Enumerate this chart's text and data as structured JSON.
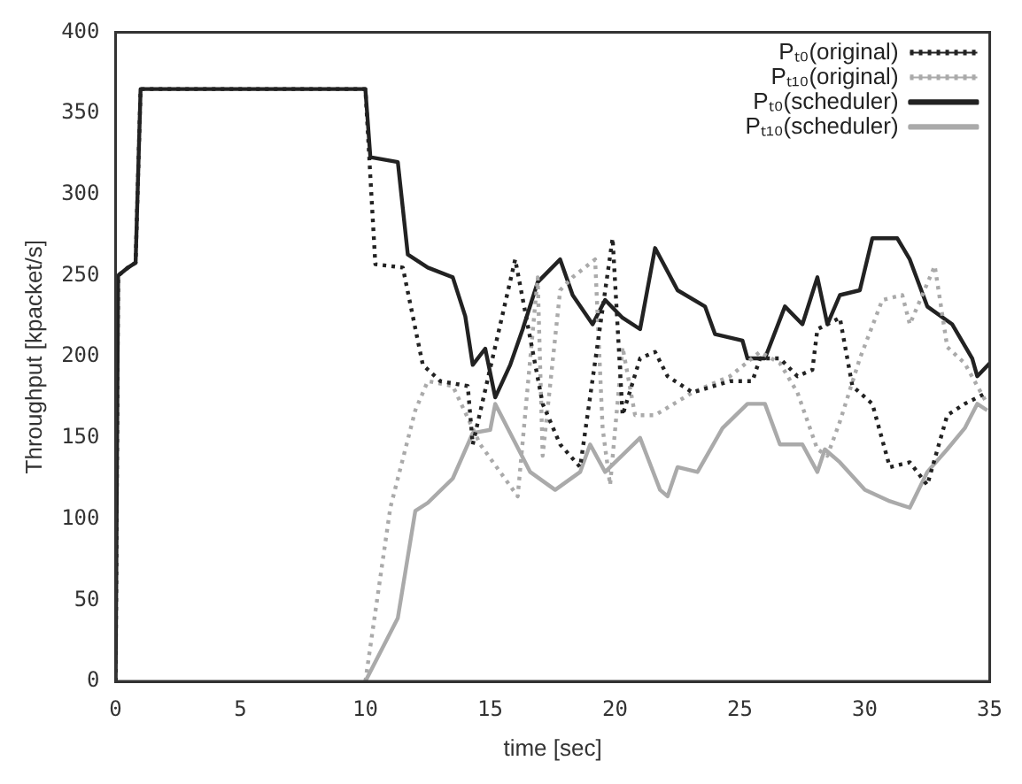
{
  "chart_data": {
    "type": "line",
    "xlabel": "time [sec]",
    "ylabel": "Throughput [kpacket/s]",
    "xlim": [
      0,
      35
    ],
    "ylim": [
      0,
      400
    ],
    "xticks": [
      0,
      5,
      10,
      15,
      20,
      25,
      30,
      35
    ],
    "yticks": [
      0,
      50,
      100,
      150,
      200,
      250,
      300,
      350,
      400
    ],
    "grid": false,
    "legend": "top right",
    "marker": "none",
    "series": [
      {
        "name": "Pₜ₀(original)",
        "color": "#222222",
        "line_style": "dotted",
        "x": [
          0,
          0.1,
          0.5,
          0.8,
          1,
          10,
          10.4,
          11.5,
          12.3,
          13,
          14.1,
          14.3,
          16,
          17.1,
          17.8,
          18.6,
          19.9,
          20.3,
          21,
          21.6,
          22.1,
          23.1,
          24.6,
          25.5,
          25.8,
          26.6,
          27.3,
          27.9,
          28.1,
          29,
          29.5,
          30.3,
          31,
          31.8,
          32.5,
          33.3,
          34,
          34.9
        ],
        "values": [
          0,
          250,
          255,
          258,
          365,
          365,
          257,
          255,
          195,
          185,
          182,
          146,
          260,
          171,
          146,
          132,
          273,
          164,
          199,
          203,
          188,
          178,
          185,
          185,
          199,
          199,
          188,
          192,
          217,
          224,
          182,
          171,
          132,
          135,
          121,
          164,
          171,
          178
        ]
      },
      {
        "name": "Pₜ₁₀(original)",
        "color": "#aaaaaa",
        "line_style": "dotted",
        "x": [
          10,
          11,
          12,
          12.5,
          13.5,
          14.6,
          16.1,
          16.9,
          17.1,
          17.8,
          18.3,
          19.2,
          19.5,
          19.8,
          20.3,
          20.8,
          21.6,
          23.1,
          24.6,
          25.8,
          26.6,
          27.3,
          28.1,
          28.5,
          29,
          29.8,
          30.7,
          31.5,
          31.8,
          32.8,
          33.3,
          34,
          34.9
        ],
        "values": [
          0,
          107,
          167,
          185,
          182,
          146,
          114,
          249,
          139,
          241,
          249,
          260,
          156,
          121,
          206,
          164,
          164,
          178,
          188,
          203,
          196,
          178,
          143,
          139,
          160,
          199,
          235,
          238,
          220,
          256,
          206,
          196,
          171
        ]
      },
      {
        "name": "Pₜ₀(scheduler)",
        "color": "#222222",
        "line_style": "solid",
        "x": [
          0,
          0.1,
          0.5,
          0.8,
          1,
          10,
          10.2,
          11.3,
          11.7,
          12.5,
          13.5,
          14,
          14.3,
          14.8,
          15.2,
          15.8,
          16.3,
          16.9,
          17.8,
          18.3,
          19.1,
          19.6,
          20.3,
          21,
          21.6,
          22.5,
          23.6,
          24,
          25.1,
          25.3,
          26,
          26.8,
          27.5,
          28.1,
          28.5,
          29,
          29.8,
          30.3,
          31.3,
          31.8,
          32.5,
          33.5,
          34.3,
          34.5,
          35
        ],
        "values": [
          0,
          250,
          255,
          258,
          365,
          365,
          323,
          320,
          263,
          255,
          249,
          225,
          195,
          205,
          175,
          195,
          217,
          246,
          260,
          238,
          220,
          235,
          224,
          217,
          267,
          241,
          231,
          214,
          210,
          199,
          199,
          231,
          220,
          249,
          220,
          238,
          241,
          273,
          273,
          260,
          231,
          220,
          199,
          188,
          196
        ]
      },
      {
        "name": "Pₜ₁₀(scheduler)",
        "color": "#aaaaaa",
        "line_style": "solid",
        "x": [
          10,
          11.3,
          12,
          12.5,
          13.5,
          14.3,
          15,
          15.2,
          15.8,
          16.6,
          17.6,
          18.6,
          19,
          19.6,
          21,
          21.8,
          22.1,
          22.5,
          23.3,
          24.3,
          25.3,
          26,
          26.6,
          27.5,
          28.1,
          28.4,
          29,
          30,
          31,
          31.8,
          32.5,
          33.3,
          34,
          34.5,
          34.9
        ],
        "values": [
          0,
          39,
          105,
          110,
          125,
          153,
          155,
          171,
          153,
          129,
          118,
          129,
          146,
          129,
          150,
          118,
          114,
          132,
          129,
          156,
          171,
          171,
          146,
          146,
          129,
          143,
          135,
          118,
          111,
          107,
          129,
          143,
          156,
          171,
          167
        ]
      }
    ]
  }
}
